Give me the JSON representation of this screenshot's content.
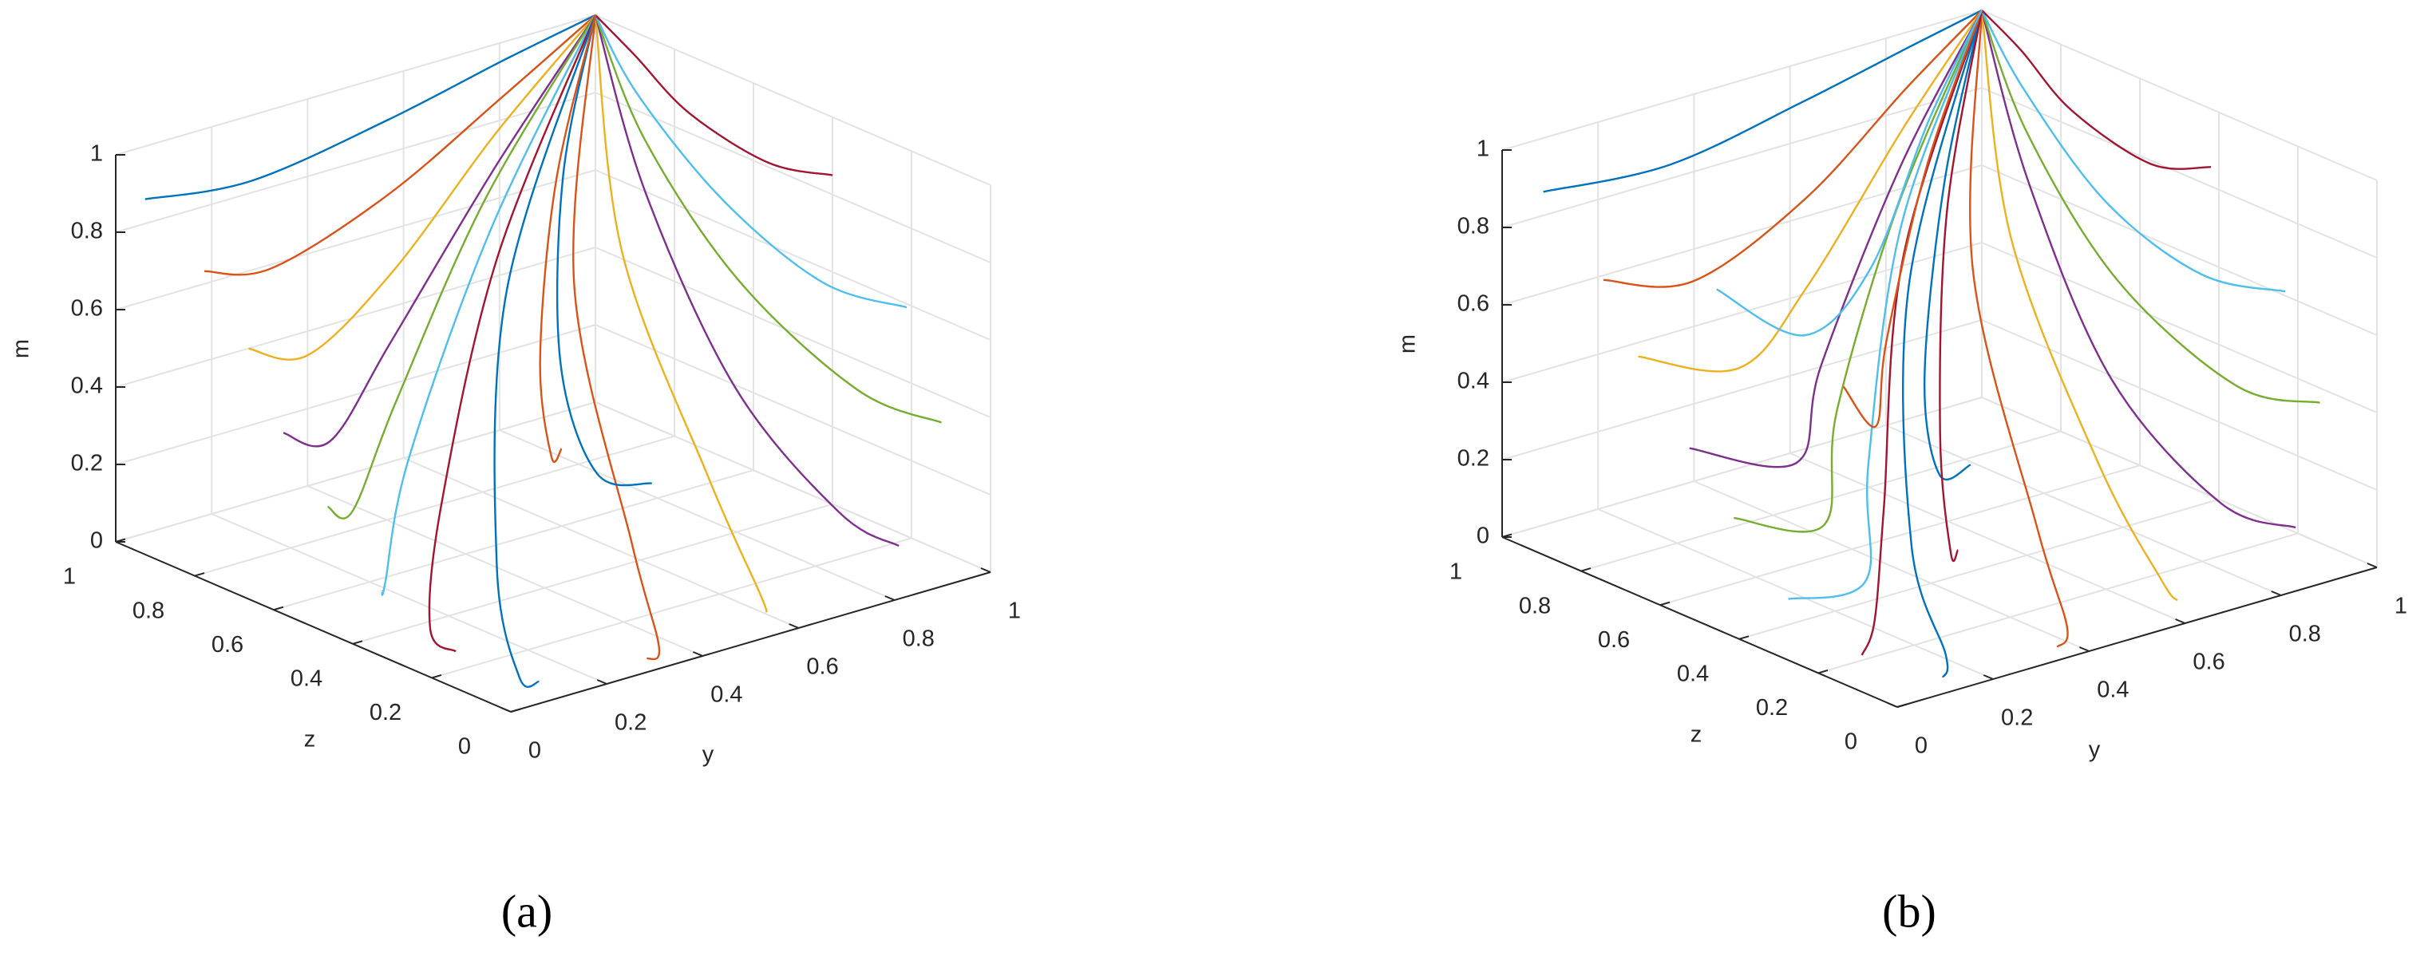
{
  "chart_data": [
    {
      "type": "line3d",
      "caption": "(a)",
      "zlabel": "z",
      "ylabel": "y",
      "mlabel": "m",
      "zlim": [
        0,
        1
      ],
      "ylim": [
        0,
        1
      ],
      "mlim": [
        0,
        1
      ],
      "zticks": [
        0,
        0.2,
        0.4,
        0.6,
        0.8,
        1
      ],
      "yticks": [
        0,
        0.2,
        0.4,
        0.6,
        0.8,
        1
      ],
      "mticks": [
        0,
        0.2,
        0.4,
        0.6,
        0.8,
        1
      ],
      "grid": true,
      "series": [
        {
          "color": "#0072BD",
          "z": [
            0.95,
            0.96,
            0.98,
            0.99,
            1
          ],
          "y": [
            0.02,
            0.25,
            0.55,
            0.8,
            1
          ],
          "m": [
            0.9,
            0.86,
            0.9,
            0.96,
            1
          ]
        },
        {
          "color": "#D95319",
          "z": [
            0.8,
            0.85,
            0.92,
            0.97,
            1
          ],
          "y": [
            0.02,
            0.2,
            0.5,
            0.78,
            1
          ],
          "m": [
            0.78,
            0.7,
            0.75,
            0.88,
            1
          ]
        },
        {
          "color": "#EDB120",
          "z": [
            0.7,
            0.78,
            0.88,
            0.96,
            1
          ],
          "y": [
            0.03,
            0.22,
            0.48,
            0.76,
            1
          ],
          "m": [
            0.62,
            0.5,
            0.58,
            0.8,
            1
          ]
        },
        {
          "color": "#7E2F8E",
          "z": [
            0.6,
            0.7,
            0.85,
            0.95,
            1
          ],
          "y": [
            0.02,
            0.2,
            0.45,
            0.75,
            1
          ],
          "m": [
            0.45,
            0.32,
            0.42,
            0.72,
            1
          ]
        },
        {
          "color": "#77AC30",
          "z": [
            0.5,
            0.62,
            0.8,
            0.94,
            1
          ],
          "y": [
            0.03,
            0.18,
            0.42,
            0.72,
            1
          ],
          "m": [
            0.3,
            0.18,
            0.3,
            0.65,
            1
          ]
        },
        {
          "color": "#4DBEEE",
          "z": [
            0.35,
            0.5,
            0.72,
            0.9,
            1
          ],
          "y": [
            0.02,
            0.15,
            0.38,
            0.7,
            1
          ],
          "m": [
            0.15,
            0.06,
            0.2,
            0.6,
            1
          ]
        },
        {
          "color": "#A2142F",
          "z": [
            0.2,
            0.35,
            0.6,
            0.86,
            1
          ],
          "y": [
            0.05,
            0.12,
            0.35,
            0.68,
            1
          ],
          "m": [
            0.05,
            0.02,
            0.15,
            0.55,
            1
          ]
        },
        {
          "color": "#0072BD",
          "z": [
            0.05,
            0.1,
            0.4,
            0.8,
            1
          ],
          "y": [
            0.1,
            0.1,
            0.3,
            0.65,
            1
          ],
          "m": [
            0.02,
            0.01,
            0.1,
            0.5,
            1
          ]
        },
        {
          "color": "#D95319",
          "z": [
            0.02,
            0.05,
            0.3,
            0.75,
            1
          ],
          "y": [
            0.3,
            0.35,
            0.5,
            0.75,
            1
          ],
          "m": [
            0.02,
            0.02,
            0.12,
            0.5,
            1
          ]
        },
        {
          "color": "#EDB120",
          "z": [
            0.02,
            0.1,
            0.35,
            0.75,
            1
          ],
          "y": [
            0.55,
            0.6,
            0.7,
            0.85,
            1
          ],
          "m": [
            0.05,
            0.05,
            0.2,
            0.55,
            1
          ]
        },
        {
          "color": "#7E2F8E",
          "z": [
            0.05,
            0.2,
            0.5,
            0.8,
            1
          ],
          "y": [
            0.85,
            0.85,
            0.88,
            0.94,
            1
          ],
          "m": [
            0.1,
            0.12,
            0.3,
            0.65,
            1
          ]
        },
        {
          "color": "#77AC30",
          "z": [
            0.1,
            0.3,
            0.6,
            0.85,
            1
          ],
          "y": [
            0.98,
            0.97,
            0.97,
            0.98,
            1
          ],
          "m": [
            0.35,
            0.35,
            0.5,
            0.75,
            1
          ]
        },
        {
          "color": "#4DBEEE",
          "z": [
            0.2,
            0.4,
            0.65,
            0.88,
            1
          ],
          "y": [
            0.99,
            0.98,
            0.98,
            0.99,
            1
          ],
          "m": [
            0.6,
            0.58,
            0.68,
            0.85,
            1
          ]
        },
        {
          "color": "#A2142F",
          "z": [
            0.4,
            0.55,
            0.75,
            0.9,
            1
          ],
          "y": [
            1,
            0.99,
            0.99,
            1,
            1
          ],
          "m": [
            0.85,
            0.82,
            0.86,
            0.94,
            1
          ]
        },
        {
          "color": "#0072BD",
          "z": [
            0.25,
            0.45,
            0.7,
            0.9,
            1
          ],
          "y": [
            0.5,
            0.55,
            0.68,
            0.85,
            1
          ],
          "m": [
            0.3,
            0.22,
            0.35,
            0.68,
            1
          ]
        },
        {
          "color": "#D95319",
          "z": [
            0.6,
            0.65,
            0.8,
            0.93,
            1
          ],
          "y": [
            0.6,
            0.62,
            0.72,
            0.86,
            1
          ],
          "m": [
            0.2,
            0.15,
            0.3,
            0.65,
            1
          ]
        }
      ]
    },
    {
      "type": "line3d",
      "caption": "(b)",
      "zlabel": "z",
      "ylabel": "y",
      "mlabel": "m",
      "zlim": [
        0,
        1
      ],
      "ylim": [
        0,
        1
      ],
      "mlim": [
        0,
        1
      ],
      "zticks": [
        0,
        0.2,
        0.4,
        0.6,
        0.8,
        1
      ],
      "yticks": [
        0,
        0.2,
        0.4,
        0.6,
        0.8,
        1
      ],
      "mticks": [
        0,
        0.2,
        0.4,
        0.6,
        0.8,
        1
      ],
      "grid": true,
      "series": [
        {
          "color": "#0072BD",
          "z": [
            0.92,
            0.94,
            0.97,
            0.99,
            1
          ],
          "y": [
            0.02,
            0.3,
            0.6,
            0.85,
            1
          ],
          "m": [
            0.92,
            0.88,
            0.92,
            0.97,
            1
          ]
        },
        {
          "color": "#D95319",
          "z": [
            0.78,
            0.82,
            0.9,
            0.97,
            1
          ],
          "y": [
            0.03,
            0.25,
            0.55,
            0.82,
            1
          ],
          "m": [
            0.75,
            0.65,
            0.72,
            0.88,
            1
          ]
        },
        {
          "color": "#EDB120",
          "z": [
            0.68,
            0.74,
            0.86,
            0.95,
            1
          ],
          "y": [
            0.02,
            0.28,
            0.52,
            0.8,
            1
          ],
          "m": [
            0.6,
            0.45,
            0.52,
            0.8,
            1
          ]
        },
        {
          "color": "#7E2F8E",
          "z": [
            0.55,
            0.62,
            0.8,
            0.94,
            1
          ],
          "y": [
            0.02,
            0.3,
            0.5,
            0.78,
            1
          ],
          "m": [
            0.42,
            0.25,
            0.35,
            0.7,
            1
          ]
        },
        {
          "color": "#77AC30",
          "z": [
            0.45,
            0.55,
            0.76,
            0.92,
            1
          ],
          "y": [
            0.03,
            0.3,
            0.5,
            0.76,
            1
          ],
          "m": [
            0.28,
            0.12,
            0.25,
            0.62,
            1
          ]
        },
        {
          "color": "#4DBEEE",
          "z": [
            0.3,
            0.42,
            0.68,
            0.9,
            1
          ],
          "y": [
            0.02,
            0.28,
            0.5,
            0.75,
            1
          ],
          "m": [
            0.14,
            0.04,
            0.15,
            0.58,
            1
          ]
        },
        {
          "color": "#A2142F",
          "z": [
            0.15,
            0.3,
            0.58,
            0.86,
            1
          ],
          "y": [
            0.05,
            0.2,
            0.45,
            0.72,
            1
          ],
          "m": [
            0.05,
            0.02,
            0.1,
            0.52,
            1
          ]
        },
        {
          "color": "#0072BD",
          "z": [
            0.03,
            0.12,
            0.45,
            0.82,
            1
          ],
          "y": [
            0.12,
            0.2,
            0.4,
            0.7,
            1
          ],
          "m": [
            0.02,
            0.01,
            0.08,
            0.48,
            1
          ]
        },
        {
          "color": "#D95319",
          "z": [
            0.02,
            0.08,
            0.35,
            0.78,
            1
          ],
          "y": [
            0.35,
            0.42,
            0.58,
            0.8,
            1
          ],
          "m": [
            0.02,
            0.02,
            0.1,
            0.5,
            1
          ]
        },
        {
          "color": "#EDB120",
          "z": [
            0.02,
            0.12,
            0.4,
            0.78,
            1
          ],
          "y": [
            0.6,
            0.65,
            0.75,
            0.88,
            1
          ],
          "m": [
            0.05,
            0.04,
            0.18,
            0.55,
            1
          ]
        },
        {
          "color": "#7E2F8E",
          "z": [
            0.06,
            0.25,
            0.55,
            0.82,
            1
          ],
          "y": [
            0.88,
            0.88,
            0.9,
            0.95,
            1
          ],
          "m": [
            0.12,
            0.1,
            0.28,
            0.65,
            1
          ]
        },
        {
          "color": "#77AC30",
          "z": [
            0.12,
            0.32,
            0.62,
            0.86,
            1
          ],
          "y": [
            0.98,
            0.97,
            0.97,
            0.98,
            1
          ],
          "m": [
            0.38,
            0.34,
            0.48,
            0.75,
            1
          ]
        },
        {
          "color": "#4DBEEE",
          "z": [
            0.22,
            0.42,
            0.66,
            0.88,
            1
          ],
          "y": [
            0.99,
            0.98,
            0.98,
            0.99,
            1
          ],
          "m": [
            0.62,
            0.58,
            0.66,
            0.85,
            1
          ]
        },
        {
          "color": "#A2142F",
          "z": [
            0.42,
            0.56,
            0.76,
            0.9,
            1
          ],
          "y": [
            1,
            0.99,
            0.99,
            1,
            1
          ],
          "m": [
            0.85,
            0.8,
            0.85,
            0.94,
            1
          ]
        },
        {
          "color": "#0072BD",
          "z": [
            0.3,
            0.5,
            0.72,
            0.9,
            1
          ],
          "y": [
            0.4,
            0.5,
            0.65,
            0.84,
            1
          ],
          "m": [
            0.35,
            0.2,
            0.3,
            0.66,
            1
          ]
        },
        {
          "color": "#D95319",
          "z": [
            0.5,
            0.6,
            0.78,
            0.92,
            1
          ],
          "y": [
            0.3,
            0.45,
            0.62,
            0.82,
            1
          ],
          "m": [
            0.5,
            0.3,
            0.38,
            0.7,
            1
          ]
        },
        {
          "color": "#A2142F",
          "z": [
            0.15,
            0.35,
            0.62,
            0.87,
            1
          ],
          "y": [
            0.25,
            0.4,
            0.6,
            0.82,
            1
          ],
          "m": [
            0.25,
            0.1,
            0.22,
            0.6,
            1
          ]
        },
        {
          "color": "#4DBEEE",
          "z": [
            0.7,
            0.72,
            0.82,
            0.94,
            1
          ],
          "y": [
            0.2,
            0.4,
            0.62,
            0.84,
            1
          ],
          "m": [
            0.7,
            0.5,
            0.55,
            0.8,
            1
          ]
        }
      ]
    }
  ]
}
